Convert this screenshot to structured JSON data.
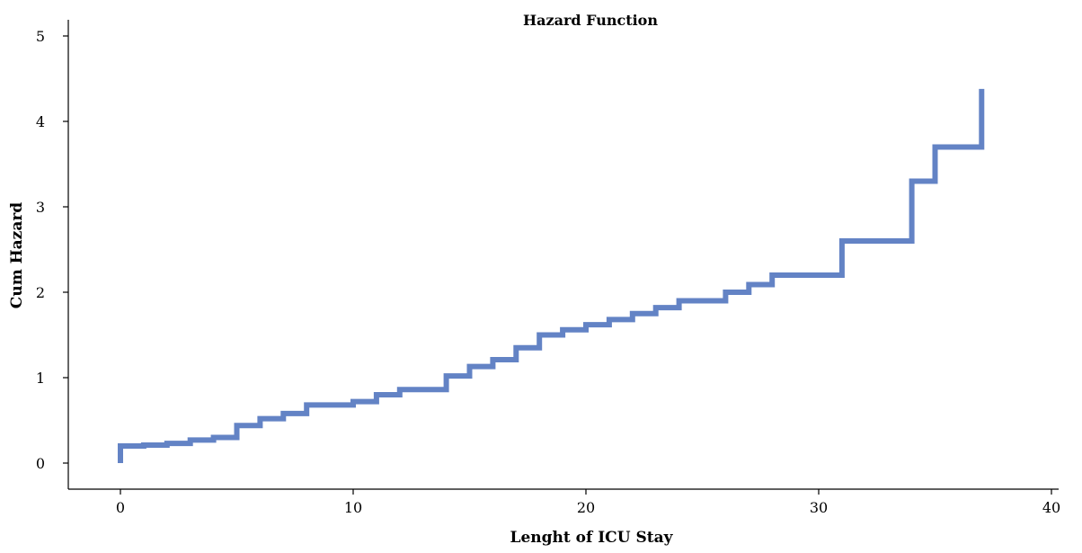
{
  "chart_data": {
    "type": "line",
    "title": "Hazard Function",
    "xlabel": "Lenght of ICU Stay",
    "ylabel": "Cum Hazard",
    "xlim": [
      0,
      40
    ],
    "ylim": [
      0,
      5
    ],
    "x_ticks": [
      "0",
      "10",
      "20",
      "30",
      "40"
    ],
    "y_ticks": [
      "0",
      "1",
      "2",
      "3",
      "4",
      "5"
    ],
    "grid": false,
    "legend": "none",
    "step": true,
    "line_color": "#6383c5",
    "series": [
      {
        "x": [
          0,
          0,
          1,
          2,
          3,
          4,
          5,
          6,
          7,
          8,
          10,
          11,
          12,
          14,
          15,
          16,
          17,
          18,
          19,
          20,
          21,
          22,
          23,
          24,
          26,
          27,
          28,
          31,
          34,
          35,
          37
        ],
        "values": [
          0.0,
          0.2,
          0.21,
          0.23,
          0.27,
          0.3,
          0.44,
          0.52,
          0.58,
          0.68,
          0.72,
          0.8,
          0.86,
          1.02,
          1.13,
          1.21,
          1.35,
          1.5,
          1.56,
          1.62,
          1.68,
          1.75,
          1.82,
          1.9,
          2.0,
          2.09,
          2.2,
          2.6,
          3.3,
          3.7,
          4.38
        ]
      }
    ]
  }
}
